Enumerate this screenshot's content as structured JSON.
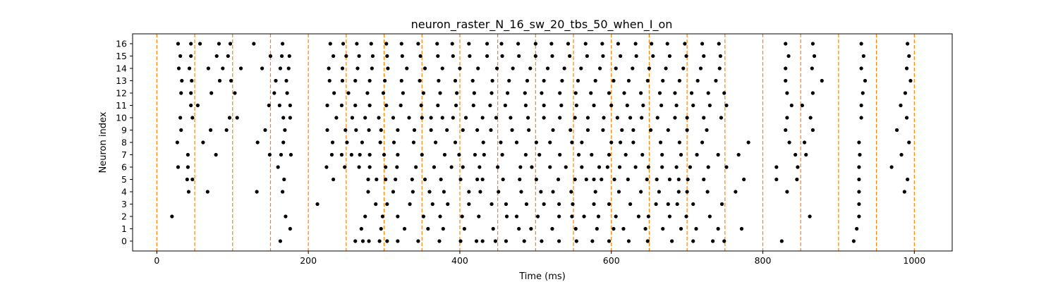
{
  "chart_data": {
    "type": "scatter",
    "title": "neuron_raster_N_16_sw_20_tbs_50_when_I_on",
    "xlabel": "Time (ms)",
    "ylabel": "Neuron index",
    "xlim": [
      -32,
      1050
    ],
    "ylim": [
      -0.8,
      16.8
    ],
    "xticks": [
      0,
      200,
      400,
      600,
      800,
      1000
    ],
    "yticks": [
      0,
      1,
      2,
      3,
      4,
      5,
      6,
      7,
      8,
      9,
      10,
      11,
      12,
      13,
      14,
      15,
      16
    ],
    "grid": false,
    "marker_color": "#000000",
    "vline_color": "#ff7f0e",
    "vlines_x": [
      0,
      50,
      100,
      150,
      200,
      250,
      300,
      350,
      400,
      450,
      500,
      550,
      600,
      650,
      700,
      750,
      800,
      850,
      900,
      950,
      1000
    ],
    "series": [
      {
        "neuron": 0,
        "x": [
          163,
          262,
          272,
          280,
          294,
          304,
          318,
          345,
          373,
          401,
          422,
          430,
          447,
          461,
          485,
          508,
          531,
          554,
          575,
          597,
          623,
          648,
          680,
          708,
          734,
          749,
          825,
          920
        ]
      },
      {
        "neuron": 1,
        "x": [
          176,
          270,
          296,
          327,
          358,
          378,
          406,
          444,
          478,
          494,
          522,
          553,
          581,
          603,
          616,
          645,
          668,
          692,
          712,
          741,
          772,
          924
        ]
      },
      {
        "neuron": 2,
        "x": [
          20,
          170,
          275,
          298,
          318,
          352,
          374,
          403,
          425,
          462,
          475,
          503,
          531,
          548,
          564,
          583,
          606,
          636,
          649,
          677,
          699,
          730,
          862,
          927
        ]
      },
      {
        "neuron": 3,
        "x": [
          212,
          289,
          304,
          334,
          364,
          384,
          412,
          442,
          461,
          488,
          511,
          531,
          549,
          577,
          597,
          625,
          659,
          675,
          687,
          708,
          746,
          927
        ]
      },
      {
        "neuron": 4,
        "x": [
          42,
          67,
          132,
          166,
          279,
          312,
          338,
          360,
          379,
          412,
          427,
          451,
          481,
          507,
          523,
          547,
          579,
          610,
          639,
          663,
          689,
          700,
          727,
          764,
          832,
          927,
          987
        ]
      },
      {
        "neuron": 5,
        "x": [
          40,
          47,
          168,
          233,
          279,
          290,
          302,
          315,
          337,
          354,
          375,
          401,
          423,
          430,
          457,
          479,
          501,
          530,
          552,
          567,
          577,
          587,
          604,
          622,
          647,
          660,
          677,
          689,
          701,
          722,
          775,
          818,
          845,
          927,
          991
        ]
      },
      {
        "neuron": 6,
        "x": [
          28,
          41,
          160,
          224,
          248,
          267,
          281,
          302,
          317,
          342,
          366,
          389,
          404,
          426,
          450,
          480,
          495,
          519,
          540,
          561,
          584,
          595,
          611,
          632,
          649,
          667,
          686,
          704,
          728,
          752,
          818,
          846,
          927,
          970
        ]
      },
      {
        "neuron": 7,
        "x": [
          41,
          78,
          149,
          164,
          177,
          231,
          244,
          257,
          268,
          281,
          300,
          318,
          350,
          380,
          399,
          420,
          432,
          456,
          487,
          505,
          532,
          557,
          574,
          597,
          619,
          641,
          667,
          692,
          713,
          741,
          768,
          843,
          857,
          928,
          983
        ]
      },
      {
        "neuron": 8,
        "x": [
          27,
          61,
          133,
          167,
          232,
          251,
          271,
          295,
          313,
          339,
          368,
          394,
          431,
          454,
          475,
          501,
          519,
          548,
          561,
          600,
          612,
          629,
          665,
          690,
          720,
          781,
          835,
          855,
          927,
          993
        ]
      },
      {
        "neuron": 9,
        "x": [
          32,
          71,
          92,
          143,
          169,
          225,
          249,
          263,
          280,
          296,
          318,
          340,
          362,
          383,
          404,
          423,
          441,
          469,
          491,
          523,
          546,
          569,
          589,
          614,
          629,
          652,
          675,
          700,
          726,
          830,
          866,
          977
        ]
      },
      {
        "neuron": 10,
        "x": [
          31,
          47,
          96,
          106,
          167,
          176,
          237,
          258,
          275,
          293,
          312,
          333,
          350,
          362,
          377,
          391,
          408,
          430,
          448,
          467,
          490,
          511,
          532,
          552,
          569,
          590,
          608,
          625,
          640,
          661,
          684,
          700,
          722,
          745,
          832,
          863,
          930,
          990
        ]
      },
      {
        "neuron": 11,
        "x": [
          45,
          54,
          148,
          162,
          176,
          225,
          244,
          262,
          281,
          303,
          322,
          349,
          371,
          395,
          418,
          440,
          460,
          487,
          511,
          534,
          554,
          577,
          600,
          621,
          642,
          666,
          686,
          708,
          730,
          752,
          838,
          852,
          930,
          982
        ]
      },
      {
        "neuron": 12,
        "x": [
          32,
          45,
          72,
          103,
          155,
          172,
          234,
          253,
          278,
          299,
          325,
          352,
          374,
          396,
          419,
          442,
          463,
          486,
          508,
          532,
          553,
          573,
          597,
          617,
          639,
          664,
          684,
          706,
          728,
          749,
          832,
          866,
          932,
          988
        ]
      },
      {
        "neuron": 13,
        "x": [
          33,
          46,
          83,
          98,
          157,
          171,
          228,
          245,
          262,
          281,
          301,
          323,
          347,
          372,
          394,
          417,
          443,
          465,
          489,
          511,
          535,
          556,
          579,
          603,
          623,
          648,
          668,
          690,
          714,
          738,
          830,
          878,
          935,
          995
        ]
      },
      {
        "neuron": 14,
        "x": [
          29,
          43,
          68,
          87,
          111,
          139,
          163,
          174,
          227,
          245,
          265,
          284,
          305,
          330,
          354,
          377,
          400,
          424,
          449,
          470,
          493,
          516,
          538,
          560,
          585,
          606,
          628,
          650,
          672,
          695,
          718,
          743,
          830,
          865,
          930,
          990
        ]
      },
      {
        "neuron": 15,
        "x": [
          31,
          45,
          79,
          94,
          150,
          165,
          175,
          233,
          250,
          267,
          285,
          304,
          324,
          348,
          371,
          391,
          413,
          436,
          456,
          478,
          500,
          522,
          545,
          568,
          589,
          612,
          633,
          655,
          677,
          699,
          722,
          744,
          834,
          868,
          933,
          993
        ]
      },
      {
        "neuron": 16,
        "x": [
          28,
          45,
          57,
          82,
          97,
          128,
          166,
          229,
          246,
          264,
          283,
          303,
          323,
          345,
          370,
          390,
          412,
          436,
          455,
          477,
          500,
          521,
          543,
          566,
          588,
          609,
          632,
          653,
          674,
          697,
          720,
          742,
          830,
          866,
          930,
          991
        ]
      }
    ]
  }
}
